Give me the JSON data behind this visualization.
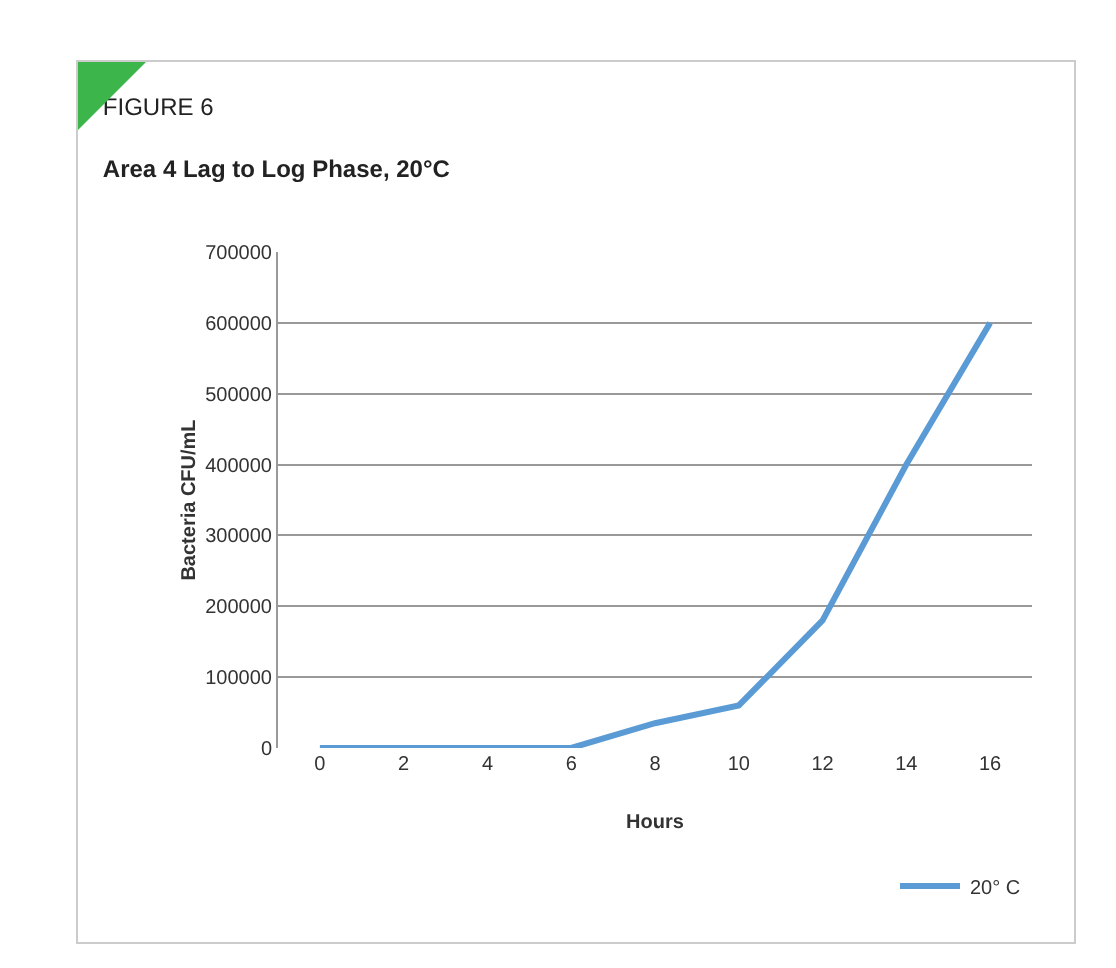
{
  "chart_data": {
    "type": "line",
    "title": "FIGURE 6",
    "subtitle": "Area 4 Lag to Log Phase, 20°C",
    "xlabel": "Hours",
    "ylabel": "Bacteria CFU/mL",
    "x": [
      0,
      2,
      4,
      6,
      8,
      10,
      12,
      14,
      16
    ],
    "series": [
      {
        "name": "20° C",
        "color": "#5b9bd5",
        "values": [
          0,
          0,
          0,
          0,
          35000,
          60000,
          180000,
          400000,
          600000
        ]
      }
    ],
    "xlim": [
      -1,
      17
    ],
    "xticks": [
      0,
      2,
      4,
      6,
      8,
      10,
      12,
      14,
      16
    ],
    "ylim": [
      0,
      700000
    ],
    "yticks": [
      0,
      100000,
      200000,
      300000,
      400000,
      500000,
      600000,
      700000
    ],
    "grid": "y",
    "legend": "bottom right",
    "marker": "none",
    "line_style": "solid"
  }
}
